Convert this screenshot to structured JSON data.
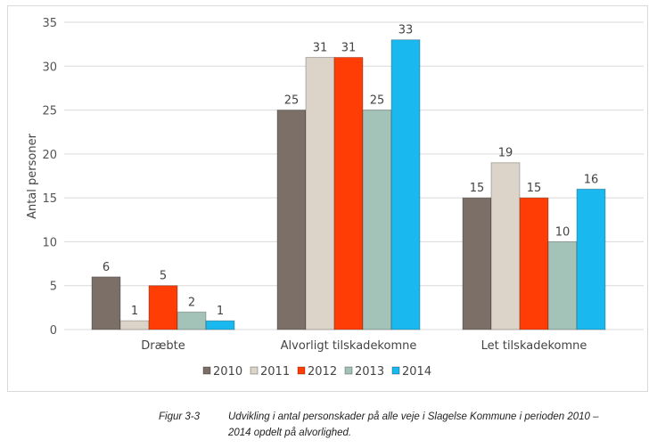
{
  "chart_data": {
    "type": "bar",
    "title": "",
    "xlabel": "",
    "ylabel": "Antal personer",
    "ylim": [
      0,
      35
    ],
    "yticks": [
      0,
      5,
      10,
      15,
      20,
      25,
      30,
      35
    ],
    "grid": true,
    "legend_position": "bottom",
    "categories": [
      "Dræbte",
      "Alvorligt tilskadekomne",
      "Let tilskadekomne"
    ],
    "series": [
      {
        "name": "2010",
        "color": "#7b6f67",
        "values": [
          6,
          25,
          15
        ]
      },
      {
        "name": "2011",
        "color": "#dcd4c8",
        "values": [
          1,
          31,
          19
        ]
      },
      {
        "name": "2012",
        "color": "#ff3d05",
        "values": [
          5,
          31,
          15
        ]
      },
      {
        "name": "2013",
        "color": "#a3c2b8",
        "values": [
          2,
          25,
          10
        ]
      },
      {
        "name": "2014",
        "color": "#19b9f0",
        "values": [
          1,
          33,
          16
        ]
      }
    ]
  },
  "caption": {
    "label": "Figur 3-3",
    "line1": "Udvikling i antal personskader på alle veje i Slagelse Kommune i perioden 2010 –",
    "line2": "2014 opdelt på alvorlighed."
  }
}
